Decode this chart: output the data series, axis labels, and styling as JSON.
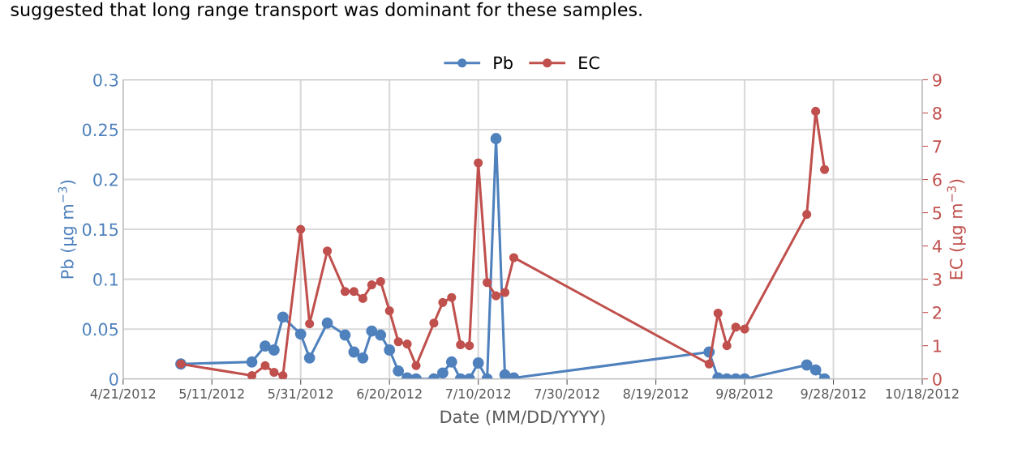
{
  "chart_data": {
    "type": "line",
    "xlabel": "Date (MM/DD/YYYY)",
    "ylabel": "Pb (µg m$^{−3}$)",
    "y2label": "EC (µg m$^{−3}$)",
    "annotations": [
      "suggested that long range transport was dominant for these samples."
    ],
    "x": [
      "2012-05-04",
      "2012-05-20",
      "2012-05-23",
      "2012-05-25",
      "2012-05-27",
      "2012-05-31",
      "2012-06-02",
      "2012-06-06",
      "2012-06-10",
      "2012-06-12",
      "2012-06-14",
      "2012-06-16",
      "2012-06-18",
      "2012-06-20",
      "2012-06-22",
      "2012-06-24",
      "2012-06-26",
      "2012-06-30",
      "2012-07-02",
      "2012-07-04",
      "2012-07-06",
      "2012-07-08",
      "2012-07-10",
      "2012-07-12",
      "2012-07-14",
      "2012-07-16",
      "2012-07-18",
      "2012-08-31",
      "2012-09-02",
      "2012-09-04",
      "2012-09-06",
      "2012-09-08",
      "2012-09-22",
      "2012-09-24",
      "2012-09-26"
    ],
    "series": [
      {
        "name": "Pb",
        "color": "#4f81bd",
        "values": [
          0.015,
          0.017,
          0.033,
          0.029,
          0.062,
          0.045,
          0.021,
          0.056,
          0.044,
          0.027,
          0.021,
          0.048,
          0.044,
          0.029,
          0.008,
          0.001,
          0,
          0,
          0.006,
          0.017,
          0,
          0,
          0.016,
          0,
          0.241,
          0.004,
          0.001,
          0.027,
          0.001,
          0,
          0,
          0,
          0.014,
          0.009,
          0
        ]
      },
      {
        "name": "EC",
        "color": "#c0504d",
        "axis": "y2",
        "values": [
          0.45,
          0.1,
          0.4,
          0.2,
          0.1,
          4.5,
          1.66,
          3.85,
          2.63,
          2.63,
          2.42,
          2.83,
          2.93,
          2.05,
          1.12,
          1.05,
          0.4,
          1.68,
          2.3,
          2.45,
          1.03,
          1.0,
          6.5,
          2.9,
          2.5,
          2.6,
          3.65,
          0.45,
          1.98,
          1.0,
          1.56,
          1.5,
          4.95,
          8.05,
          6.3
        ]
      }
    ],
    "xlim": [
      "2012-04-21",
      "2012-10-18"
    ],
    "xticks": [
      {
        "value": "2012-04-21",
        "label": "4/21/2012"
      },
      {
        "value": "2012-05-11",
        "label": "5/11/2012"
      },
      {
        "value": "2012-05-31",
        "label": "5/31/2012"
      },
      {
        "value": "2012-06-20",
        "label": "6/20/2012"
      },
      {
        "value": "2012-07-10",
        "label": "7/10/2012"
      },
      {
        "value": "2012-07-30",
        "label": "7/30/2012"
      },
      {
        "value": "2012-08-19",
        "label": "8/19/2012"
      },
      {
        "value": "2012-09-08",
        "label": "9/8/2012"
      },
      {
        "value": "2012-09-28",
        "label": "9/28/2012"
      },
      {
        "value": "2012-10-18",
        "label": "10/18/2012"
      }
    ],
    "ylim": [
      0,
      0.3
    ],
    "yticks": [
      0,
      0.05,
      0.1,
      0.15,
      0.2,
      0.25,
      0.3
    ],
    "y2lim": [
      0,
      9
    ],
    "y2ticks": [
      0,
      1,
      2,
      3,
      4,
      5,
      6,
      7,
      8,
      9
    ],
    "grid": true,
    "legend": "top",
    "marker": "circle",
    "line_style": "solid"
  }
}
